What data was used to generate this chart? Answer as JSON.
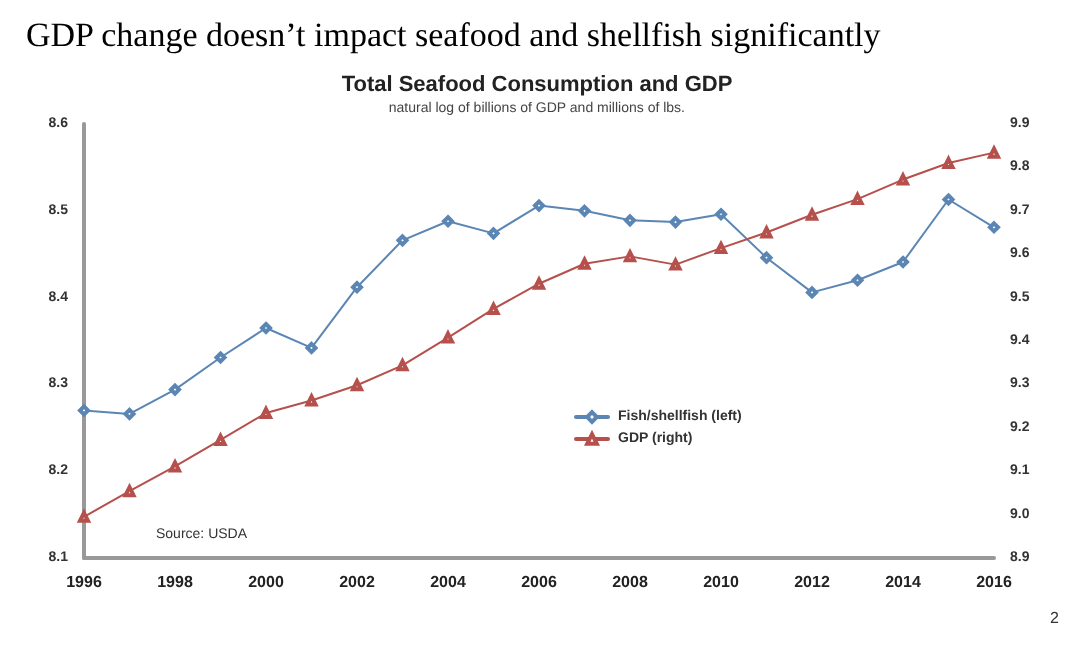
{
  "chart_data": {
    "type": "line",
    "title": "GDP change doesn’t impact seafood and shellfish significantly",
    "subtitle": "Total Seafood Consumption and GDP",
    "annotations": [
      "natural log of billions of GDP and millions of lbs.",
      "Source: USDA",
      "2"
    ],
    "x": [
      1996,
      1997,
      1998,
      1999,
      2000,
      2001,
      2002,
      2003,
      2004,
      2005,
      2006,
      2007,
      2008,
      2009,
      2010,
      2011,
      2012,
      2013,
      2014,
      2015,
      2016
    ],
    "series": [
      {
        "name": "Fish/shellfish (left)",
        "color": "#5b86b4",
        "marker": "diamond",
        "values": [
          8.27,
          8.266,
          8.294,
          8.331,
          8.365,
          8.342,
          8.412,
          8.466,
          8.488,
          8.474,
          8.506,
          8.5,
          8.489,
          8.487,
          8.496,
          8.446,
          8.406,
          8.42,
          8.441,
          8.513,
          8.481
        ]
      },
      {
        "name": "GDP (right)",
        "color": "#b5504c",
        "marker": "triangle",
        "axis": "y2",
        "values": [
          8.995,
          9.054,
          9.111,
          9.172,
          9.234,
          9.263,
          9.298,
          9.344,
          9.408,
          9.474,
          9.532,
          9.578,
          9.595,
          9.576,
          9.614,
          9.65,
          9.691,
          9.727,
          9.772,
          9.81,
          9.834
        ]
      }
    ],
    "xlim": [
      1996,
      2016
    ],
    "xticks": [
      1996,
      1998,
      2000,
      2002,
      2004,
      2006,
      2008,
      2010,
      2012,
      2014,
      2016
    ],
    "ylim": [
      8.1,
      8.6
    ],
    "yticks": [
      8.1,
      8.2,
      8.3,
      8.4,
      8.5,
      8.6
    ],
    "y2lim": [
      8.9,
      9.9
    ],
    "y2ticks": [
      8.9,
      {
        "value": 9,
        "label": "9.0"
      },
      9.1,
      9.2,
      9.3,
      9.4,
      9.5,
      9.6,
      9.7,
      9.8,
      9.9
    ],
    "grid": false,
    "legend": "center",
    "line_style": "solid"
  }
}
